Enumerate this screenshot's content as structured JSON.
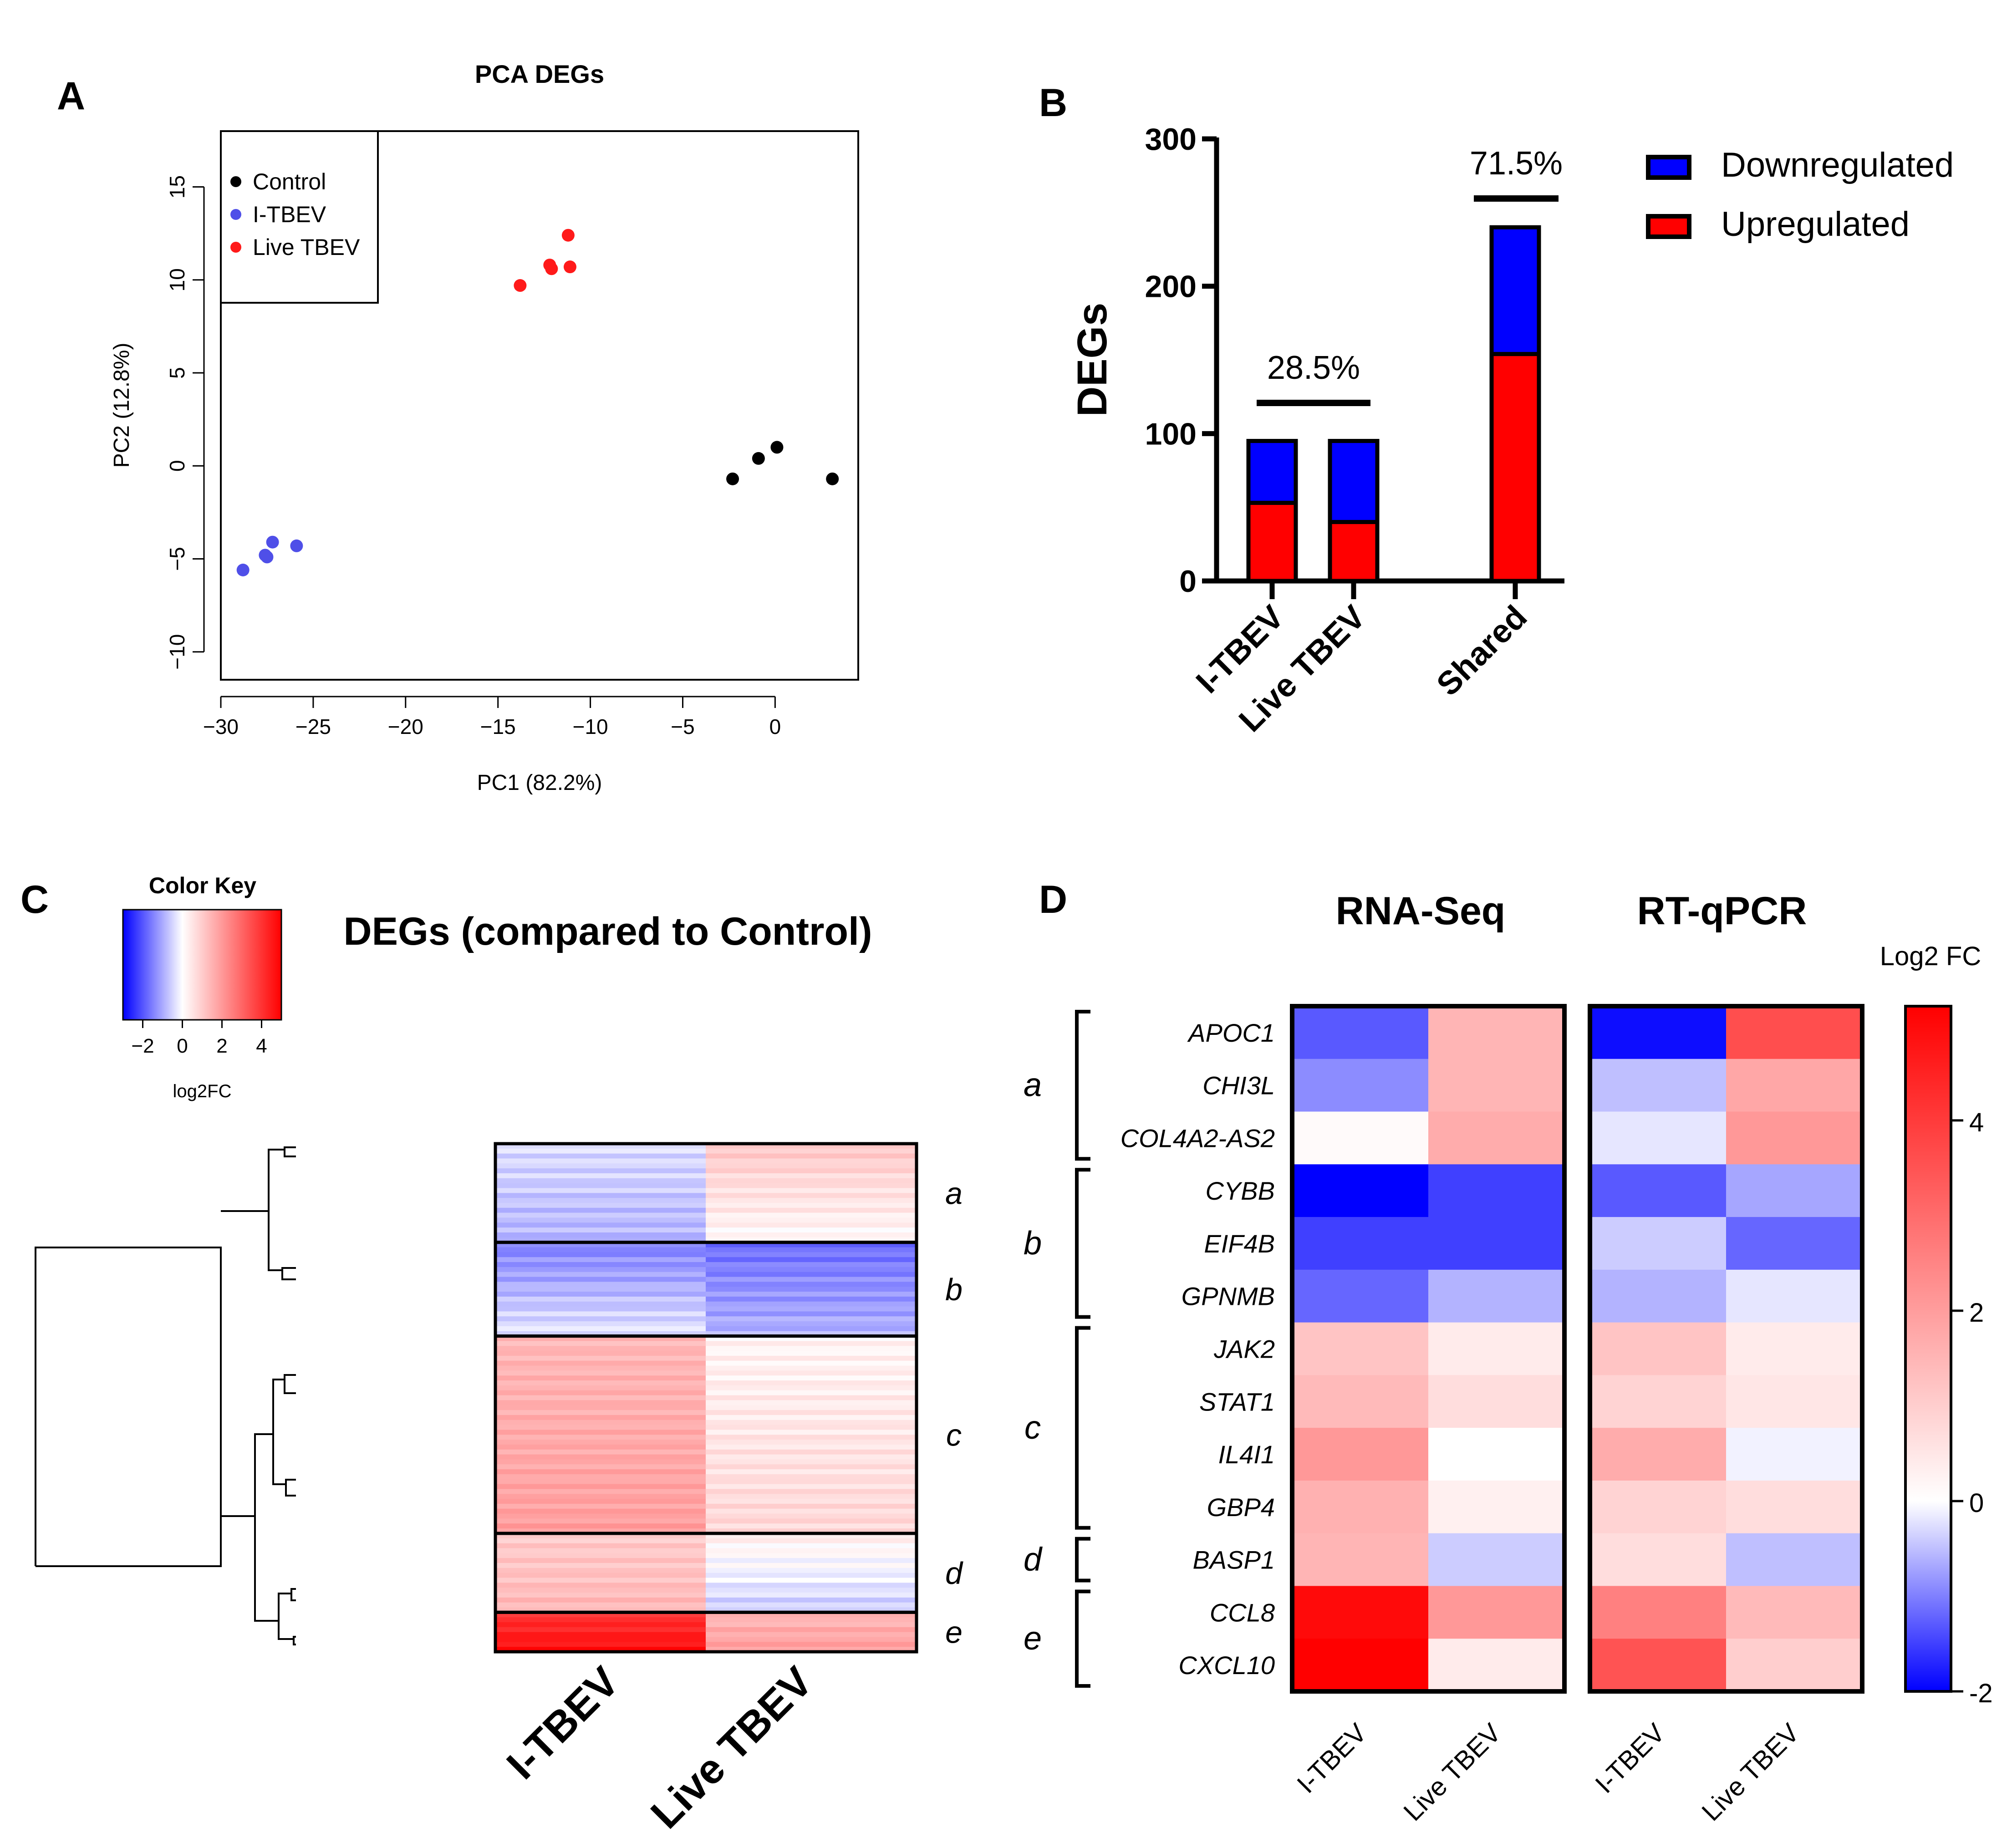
{
  "panel_labels": {
    "a": "A",
    "b": "B",
    "c": "C",
    "d": "D"
  },
  "colors": {
    "control": "#000000",
    "itbev_point": "#4f4fe8",
    "live_point": "#ff1a1a",
    "down": "#0000ff",
    "up": "#ff0000",
    "neg": "#0000ff",
    "mid": "#ffffff",
    "pos": "#ff0000"
  },
  "chart_data": [
    {
      "id": "A",
      "type": "scatter",
      "title": "PCA DEGs",
      "xlabel": "PC1 (82.2%)",
      "ylabel": "PC2 (12.8%)",
      "xlim": [
        -30,
        4.5
      ],
      "ylim": [
        -11.5,
        18
      ],
      "xticks": [
        -30,
        -25,
        -20,
        -15,
        -10,
        -5,
        0
      ],
      "yticks": [
        -10,
        -5,
        0,
        5,
        10,
        15
      ],
      "xtick_labels": [
        "−30",
        "−25",
        "−20",
        "−15",
        "−10",
        "−5",
        "0"
      ],
      "ytick_labels": [
        "−10",
        "−5",
        "0",
        "5",
        "10",
        "15"
      ],
      "legend_position": "top-left",
      "series": [
        {
          "name": "Control",
          "color": "#000000",
          "points": [
            [
              -2.3,
              -0.7
            ],
            [
              -0.9,
              0.4
            ],
            [
              0.1,
              1.0
            ],
            [
              3.1,
              -0.7
            ]
          ]
        },
        {
          "name": "I-TBEV",
          "color": "#4f4fe8",
          "points": [
            [
              -28.8,
              -5.6
            ],
            [
              -27.5,
              -4.9
            ],
            [
              -27.2,
              -4.1
            ],
            [
              -25.9,
              -4.3
            ],
            [
              -27.6,
              -4.8
            ]
          ]
        },
        {
          "name": "Live TBEV",
          "color": "#ff1a1a",
          "points": [
            [
              -13.8,
              9.7
            ],
            [
              -12.2,
              10.8
            ],
            [
              -12.1,
              10.6
            ],
            [
              -11.2,
              12.4
            ],
            [
              -11.1,
              10.7
            ]
          ]
        }
      ]
    },
    {
      "id": "B",
      "type": "bar",
      "stacked": true,
      "ylabel": "DEGs",
      "ylim": [
        0,
        300
      ],
      "yticks": [
        0,
        100,
        200,
        300
      ],
      "categories": [
        "I-TBEV",
        "Live TBEV",
        "Shared"
      ],
      "series": [
        {
          "name": "Upregulated",
          "color": "#ff0000",
          "values": [
            53,
            40,
            154
          ]
        },
        {
          "name": "Downregulated",
          "color": "#0000ff",
          "values": [
            42,
            55,
            86
          ]
        }
      ],
      "annotations": [
        {
          "text": "28.5%",
          "spans": [
            "I-TBEV",
            "Live TBEV"
          ]
        },
        {
          "text": "71.5%",
          "spans": [
            "Shared"
          ]
        }
      ],
      "legend_position": "right",
      "legend": [
        "Downregulated",
        "Upregulated"
      ]
    },
    {
      "id": "C",
      "type": "heatmap",
      "title": "DEGs (compared to Control)",
      "color_key": {
        "title": "Color Key",
        "label": "log2FC",
        "range": [
          -3,
          5
        ],
        "ticks": [
          -2,
          0,
          2,
          4
        ],
        "tick_labels": [
          "−2",
          "0",
          "2",
          "4"
        ]
      },
      "columns": [
        "I-TBEV",
        "Live TBEV"
      ],
      "clusters": [
        {
          "name": "a",
          "rows": 20,
          "itbev": [
            -0.4,
            -0.9
          ],
          "live": [
            1.1,
            0.1
          ]
        },
        {
          "name": "b",
          "rows": 19,
          "itbev": [
            -1.5,
            -0.3
          ],
          "live": [
            -1.7,
            -0.9
          ]
        },
        {
          "name": "c",
          "rows": 40,
          "itbev": [
            1.4,
            1.9
          ],
          "live": [
            0.2,
            0.8
          ]
        },
        {
          "name": "d",
          "rows": 16,
          "itbev": [
            1.0,
            1.4
          ],
          "live": [
            0.3,
            -0.6
          ]
        },
        {
          "name": "e",
          "rows": 8,
          "itbev": [
            4.0,
            4.7
          ],
          "live": [
            1.4,
            1.9
          ]
        }
      ]
    },
    {
      "id": "D",
      "type": "heatmap",
      "panels": [
        "RNA-Seq",
        "RT-qPCR"
      ],
      "columns": [
        "I-TBEV",
        "Live TBEV"
      ],
      "legend_title": "Log2 FC",
      "scale": {
        "range": [
          -2,
          5.2
        ],
        "ticks": [
          -2,
          0,
          2,
          4
        ],
        "tick_labels": [
          "-2",
          "0",
          "2",
          "4"
        ]
      },
      "genes": [
        "APOC1",
        "CHI3L",
        "COL4A2-AS2",
        "CYBB",
        "EIF4B",
        "GPNMB",
        "JAK2",
        "STAT1",
        "IL4I1",
        "GBP4",
        "BASP1",
        "CCL8",
        "CXCL10"
      ],
      "groups": [
        {
          "name": "a",
          "start": 0,
          "end": 2
        },
        {
          "name": "b",
          "start": 3,
          "end": 5
        },
        {
          "name": "c",
          "start": 6,
          "end": 9
        },
        {
          "name": "d",
          "start": 10,
          "end": 10
        },
        {
          "name": "e",
          "start": 11,
          "end": 12
        }
      ],
      "rna_seq": [
        [
          -1.3,
          1.5
        ],
        [
          -0.9,
          1.5
        ],
        [
          0.1,
          1.7
        ],
        [
          -2.0,
          -1.5
        ],
        [
          -1.5,
          -1.5
        ],
        [
          -1.2,
          -0.6
        ],
        [
          1.2,
          0.4
        ],
        [
          1.4,
          0.7
        ],
        [
          2.1,
          0.0
        ],
        [
          1.6,
          0.3
        ],
        [
          1.5,
          -0.4
        ],
        [
          5.0,
          2.1
        ],
        [
          5.2,
          0.4
        ]
      ],
      "rt_qpcr": [
        [
          -1.9,
          3.6
        ],
        [
          -0.5,
          1.8
        ],
        [
          -0.2,
          2.1
        ],
        [
          -1.3,
          -0.7
        ],
        [
          -0.4,
          -1.2
        ],
        [
          -0.6,
          -0.2
        ],
        [
          1.2,
          0.4
        ],
        [
          0.9,
          0.5
        ],
        [
          1.7,
          -0.1
        ],
        [
          0.9,
          0.7
        ],
        [
          0.7,
          -0.5
        ],
        [
          2.6,
          1.4
        ],
        [
          3.5,
          1.0
        ]
      ]
    }
  ]
}
